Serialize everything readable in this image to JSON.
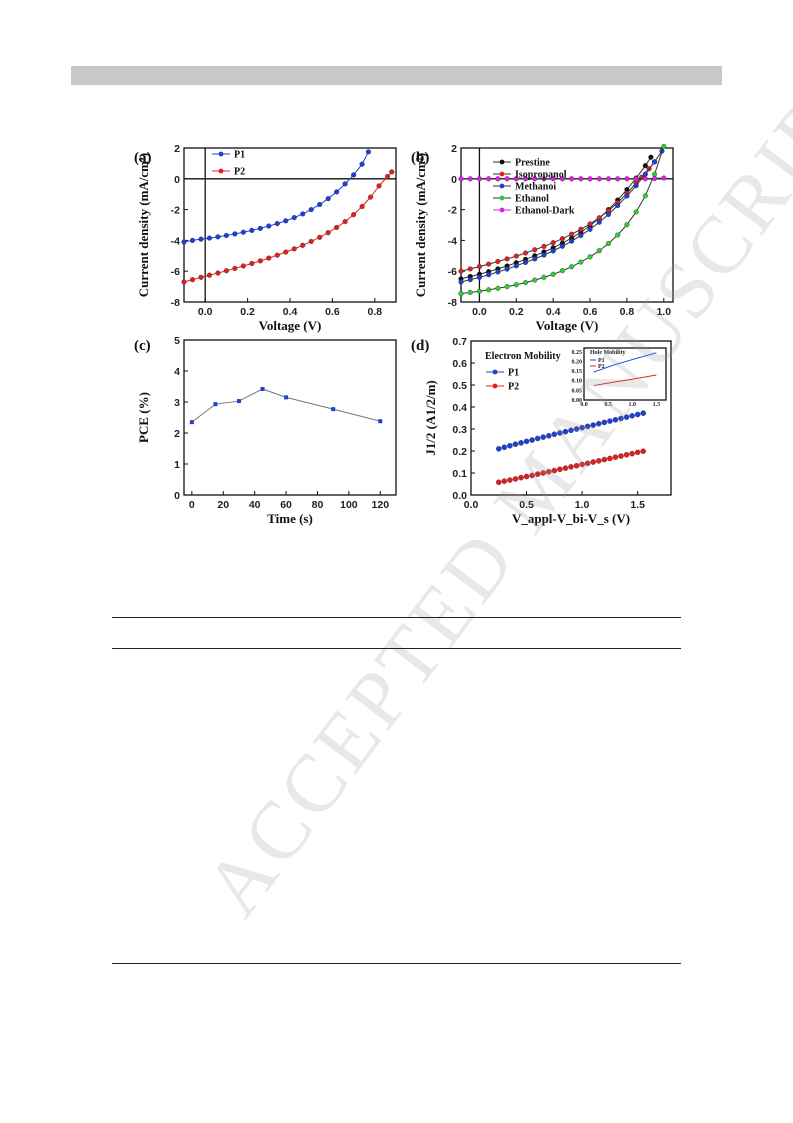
{
  "watermark": "ACCEPTED MANUSCRIPT",
  "chart_data": [
    {
      "panel": "(a)",
      "type": "line",
      "xlabel": "Voltage (V)",
      "ylabel": "Current density (mA/cm²)",
      "xlim": [
        -0.1,
        0.9
      ],
      "ylim": [
        -8,
        2
      ],
      "xticks": [
        "0.0",
        "0.2",
        "0.4",
        "0.6",
        "0.8"
      ],
      "yticks": [
        "2",
        "0",
        "-2",
        "-4",
        "-6",
        "-8"
      ],
      "legend_position": "top-left",
      "series": [
        {
          "name": "P1",
          "color": "#1f3fd6",
          "x": [
            -0.1,
            -0.06,
            -0.02,
            0.02,
            0.06,
            0.1,
            0.14,
            0.18,
            0.22,
            0.26,
            0.3,
            0.34,
            0.38,
            0.42,
            0.46,
            0.5,
            0.54,
            0.58,
            0.62,
            0.66,
            0.7,
            0.74,
            0.77
          ],
          "y": [
            -4.1,
            -4.0,
            -3.92,
            -3.85,
            -3.77,
            -3.68,
            -3.58,
            -3.47,
            -3.35,
            -3.22,
            -3.07,
            -2.91,
            -2.73,
            -2.52,
            -2.28,
            -2.0,
            -1.67,
            -1.29,
            -0.85,
            -0.33,
            0.25,
            0.95,
            1.75
          ]
        },
        {
          "name": "P2",
          "color": "#e02020",
          "x": [
            -0.1,
            -0.06,
            -0.02,
            0.02,
            0.06,
            0.1,
            0.14,
            0.18,
            0.22,
            0.26,
            0.3,
            0.34,
            0.38,
            0.42,
            0.46,
            0.5,
            0.54,
            0.58,
            0.62,
            0.66,
            0.7,
            0.74,
            0.78,
            0.82,
            0.86,
            0.88
          ],
          "y": [
            -6.7,
            -6.55,
            -6.4,
            -6.26,
            -6.12,
            -5.97,
            -5.82,
            -5.66,
            -5.5,
            -5.33,
            -5.15,
            -4.96,
            -4.76,
            -4.55,
            -4.32,
            -4.07,
            -3.8,
            -3.5,
            -3.16,
            -2.78,
            -2.33,
            -1.8,
            -1.19,
            -0.46,
            0.15,
            0.45
          ]
        }
      ]
    },
    {
      "panel": "(b)",
      "type": "line",
      "xlabel": "Voltage (V)",
      "ylabel": "Current density (mA/cm²)",
      "xlim": [
        -0.1,
        1.05
      ],
      "ylim": [
        -8,
        2
      ],
      "xticks": [
        "0.0",
        "0.2",
        "0.4",
        "0.6",
        "0.8",
        "1.0"
      ],
      "yticks": [
        "2",
        "0",
        "-2",
        "-4",
        "-6",
        "-8"
      ],
      "legend_position": "top-left",
      "series": [
        {
          "name": "Prestine",
          "color": "#111111",
          "x": [
            -0.1,
            -0.05,
            0.0,
            0.05,
            0.1,
            0.15,
            0.2,
            0.25,
            0.3,
            0.35,
            0.4,
            0.45,
            0.5,
            0.55,
            0.6,
            0.65,
            0.7,
            0.75,
            0.8,
            0.85,
            0.9,
            0.93
          ],
          "y": [
            -6.5,
            -6.35,
            -6.2,
            -6.03,
            -5.85,
            -5.66,
            -5.45,
            -5.23,
            -5.0,
            -4.75,
            -4.48,
            -4.18,
            -3.85,
            -3.48,
            -3.05,
            -2.56,
            -2.0,
            -1.38,
            -0.7,
            0.05,
            0.85,
            1.4
          ]
        },
        {
          "name": "Isopropanol",
          "color": "#e02020",
          "x": [
            -0.1,
            -0.05,
            0.0,
            0.05,
            0.1,
            0.15,
            0.2,
            0.25,
            0.3,
            0.35,
            0.4,
            0.45,
            0.5,
            0.55,
            0.6,
            0.65,
            0.7,
            0.75,
            0.8,
            0.85,
            0.88,
            0.92,
            0.95
          ],
          "y": [
            -6.0,
            -5.85,
            -5.7,
            -5.54,
            -5.37,
            -5.2,
            -5.02,
            -4.82,
            -4.61,
            -4.39,
            -4.15,
            -3.89,
            -3.6,
            -3.28,
            -2.93,
            -2.53,
            -2.07,
            -1.55,
            -0.95,
            -0.28,
            0.1,
            0.65,
            1.1
          ]
        },
        {
          "name": "Methanoi",
          "color": "#1f3fd6",
          "x": [
            -0.1,
            -0.05,
            0.0,
            0.05,
            0.1,
            0.15,
            0.2,
            0.25,
            0.3,
            0.35,
            0.4,
            0.45,
            0.5,
            0.55,
            0.6,
            0.65,
            0.7,
            0.75,
            0.8,
            0.85,
            0.9,
            0.95,
            0.99
          ],
          "y": [
            -6.7,
            -6.55,
            -6.4,
            -6.23,
            -6.05,
            -5.86,
            -5.65,
            -5.43,
            -5.2,
            -4.95,
            -4.68,
            -4.38,
            -4.05,
            -3.68,
            -3.28,
            -2.82,
            -2.31,
            -1.74,
            -1.12,
            -0.45,
            0.3,
            1.1,
            1.8
          ]
        },
        {
          "name": "Ethanol",
          "color": "#2ecc2e",
          "x": [
            -0.1,
            -0.05,
            0.0,
            0.05,
            0.1,
            0.15,
            0.2,
            0.25,
            0.3,
            0.35,
            0.4,
            0.45,
            0.5,
            0.55,
            0.6,
            0.65,
            0.7,
            0.75,
            0.8,
            0.85,
            0.9,
            0.95,
            1.0
          ],
          "y": [
            -7.45,
            -7.38,
            -7.3,
            -7.21,
            -7.11,
            -7.0,
            -6.88,
            -6.74,
            -6.58,
            -6.4,
            -6.2,
            -5.97,
            -5.71,
            -5.41,
            -5.07,
            -4.67,
            -4.2,
            -3.65,
            -2.98,
            -2.15,
            -1.1,
            0.3,
            2.1
          ]
        },
        {
          "name": "Ethanol-Dark",
          "color": "#e020e0",
          "x": [
            -0.1,
            -0.05,
            0.0,
            0.05,
            0.1,
            0.15,
            0.2,
            0.25,
            0.3,
            0.35,
            0.4,
            0.45,
            0.5,
            0.55,
            0.6,
            0.65,
            0.7,
            0.75,
            0.8,
            0.85,
            0.9,
            0.95,
            1.0
          ],
          "y": [
            0,
            0,
            0,
            0,
            0,
            0,
            0,
            0,
            0,
            0,
            0,
            0,
            0,
            0,
            0,
            0,
            0,
            0,
            0,
            0,
            0,
            0.02,
            0.05
          ]
        }
      ]
    },
    {
      "panel": "(c)",
      "type": "line",
      "xlabel": "Time (s)",
      "ylabel": "PCE (%)",
      "xlim": [
        -5,
        130
      ],
      "ylim": [
        0,
        5
      ],
      "xticks": [
        "0",
        "20",
        "40",
        "60",
        "80",
        "100",
        "120"
      ],
      "yticks": [
        "5",
        "4",
        "3",
        "2",
        "1",
        "0"
      ],
      "series": [
        {
          "color": "#1f3fd6",
          "x": [
            0,
            15,
            30,
            45,
            60,
            90,
            120
          ],
          "y": [
            2.35,
            2.93,
            3.03,
            3.42,
            3.15,
            2.77,
            2.38
          ]
        }
      ]
    },
    {
      "panel": "(d)",
      "type": "scatter",
      "title": "Electron Mobility",
      "xlabel": "V_appl-V_bi-V_s (V)",
      "ylabel": "J1/2 (A1/2/m)",
      "xlim": [
        0.0,
        1.8
      ],
      "ylim": [
        0.0,
        0.7
      ],
      "xticks": [
        "0.0",
        "0.5",
        "1.0",
        "1.5"
      ],
      "yticks": [
        "0.7",
        "0.6",
        "0.5",
        "0.4",
        "0.3",
        "0.2",
        "0.1",
        "0.0"
      ],
      "legend_position": "top-left",
      "series": [
        {
          "name": "P1",
          "color": "#1f3fd6",
          "x": [
            0.25,
            0.3,
            0.35,
            0.4,
            0.45,
            0.5,
            0.55,
            0.6,
            0.65,
            0.7,
            0.75,
            0.8,
            0.85,
            0.9,
            0.95,
            1.0,
            1.05,
            1.1,
            1.15,
            1.2,
            1.25,
            1.3,
            1.35,
            1.4,
            1.45,
            1.5,
            1.55
          ],
          "y": [
            0.21,
            0.217,
            0.224,
            0.231,
            0.237,
            0.244,
            0.25,
            0.257,
            0.263,
            0.269,
            0.276,
            0.282,
            0.288,
            0.294,
            0.3,
            0.306,
            0.312,
            0.318,
            0.324,
            0.33,
            0.336,
            0.342,
            0.348,
            0.354,
            0.36,
            0.366,
            0.372
          ]
        },
        {
          "name": "P2",
          "color": "#e02020",
          "x": [
            0.25,
            0.3,
            0.35,
            0.4,
            0.45,
            0.5,
            0.55,
            0.6,
            0.65,
            0.7,
            0.75,
            0.8,
            0.85,
            0.9,
            0.95,
            1.0,
            1.05,
            1.1,
            1.15,
            1.2,
            1.25,
            1.3,
            1.35,
            1.4,
            1.45,
            1.5,
            1.55
          ],
          "y": [
            0.058,
            0.063,
            0.068,
            0.073,
            0.079,
            0.084,
            0.089,
            0.095,
            0.1,
            0.106,
            0.111,
            0.117,
            0.122,
            0.128,
            0.133,
            0.139,
            0.144,
            0.15,
            0.155,
            0.161,
            0.166,
            0.172,
            0.177,
            0.183,
            0.188,
            0.194,
            0.199
          ]
        }
      ],
      "inset": {
        "title": "Hole Mobility",
        "xticks": [
          "0.0",
          "0.5",
          "1.0",
          "1.5"
        ],
        "yticks": [
          "0.25",
          "0.20",
          "0.15",
          "0.10",
          "0.05",
          "0.00"
        ],
        "ylim": [
          0.0,
          0.27
        ],
        "xlim": [
          0.0,
          1.7
        ],
        "series": [
          {
            "name": "P1",
            "color": "#1f3fd6",
            "x": [
              0.2,
              0.6,
              1.0,
              1.5
            ],
            "y": [
              0.145,
              0.18,
              0.21,
              0.245
            ]
          },
          {
            "name": "P2",
            "color": "#e02020",
            "x": [
              0.2,
              0.6,
              1.0,
              1.5
            ],
            "y": [
              0.075,
              0.092,
              0.108,
              0.13
            ]
          }
        ]
      }
    }
  ]
}
